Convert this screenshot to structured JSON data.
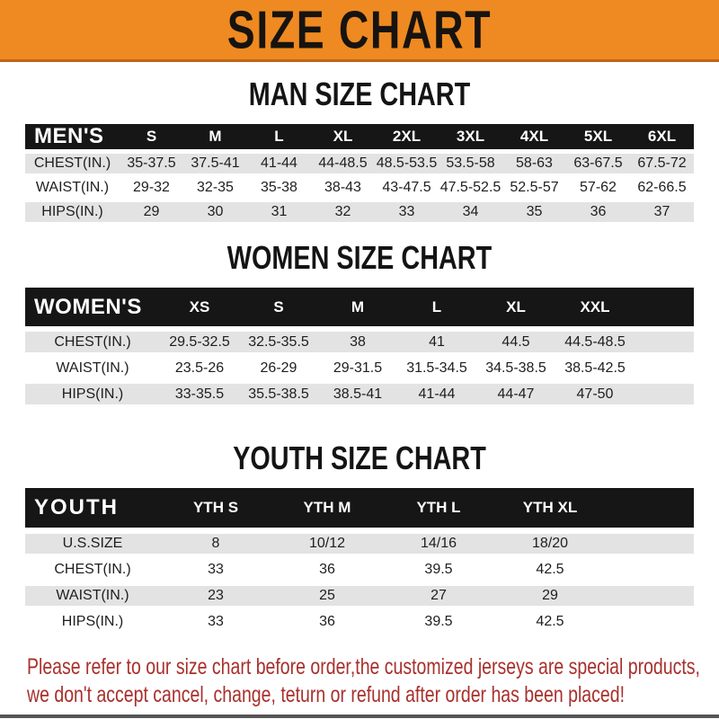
{
  "banner": {
    "title": "SIZE CHART"
  },
  "sections": [
    {
      "heading": "MAN SIZE CHART",
      "table": {
        "header_label": "MEN'S",
        "columns": [
          "S",
          "M",
          "L",
          "XL",
          "2XL",
          "3XL",
          "4XL",
          "5XL",
          "6XL"
        ],
        "rows": [
          {
            "label": "CHEST(IN.)",
            "values": [
              "35-37.5",
              "37.5-41",
              "41-44",
              "44-48.5",
              "48.5-53.5",
              "53.5-58",
              "58-63",
              "63-67.5",
              "67.5-72"
            ]
          },
          {
            "label": "WAIST(IN.)",
            "values": [
              "29-32",
              "32-35",
              "35-38",
              "38-43",
              "43-47.5",
              "47.5-52.5",
              "52.5-57",
              "57-62",
              "62-66.5"
            ]
          },
          {
            "label": "HIPS(IN.)",
            "values": [
              "29",
              "30",
              "31",
              "32",
              "33",
              "34",
              "35",
              "36",
              "37"
            ]
          }
        ]
      }
    },
    {
      "heading": "WOMEN SIZE CHART",
      "table": {
        "header_label": "WOMEN'S",
        "columns": [
          "XS",
          "S",
          "M",
          "L",
          "XL",
          "XXL"
        ],
        "rows": [
          {
            "label": "CHEST(IN.)",
            "values": [
              "29.5-32.5",
              "32.5-35.5",
              "38",
              "41",
              "44.5",
              "44.5-48.5"
            ]
          },
          {
            "label": "WAIST(IN.)",
            "values": [
              "23.5-26",
              "26-29",
              "29-31.5",
              "31.5-34.5",
              "34.5-38.5",
              "38.5-42.5"
            ]
          },
          {
            "label": "HIPS(IN.)",
            "values": [
              "33-35.5",
              "35.5-38.5",
              "38.5-41",
              "41-44",
              "44-47",
              "47-50"
            ]
          }
        ]
      }
    },
    {
      "heading": "YOUTH SIZE CHART",
      "table": {
        "header_label": "YOUTH",
        "columns": [
          "YTH S",
          "YTH M",
          "YTH L",
          "YTH XL"
        ],
        "rows": [
          {
            "label": "U.S.SIZE",
            "values": [
              "8",
              "10/12",
              "14/16",
              "18/20"
            ]
          },
          {
            "label": "CHEST(IN.)",
            "values": [
              "33",
              "36",
              "39.5",
              "42.5"
            ]
          },
          {
            "label": "WAIST(IN.)",
            "values": [
              "23",
              "25",
              "27",
              "29"
            ]
          },
          {
            "label": "HIPS(IN.)",
            "values": [
              "33",
              "36",
              "39.5",
              "42.5"
            ]
          }
        ]
      }
    }
  ],
  "footer": {
    "line1": "Please refer to our size chart before order,the customized jerseys are special products,",
    "line2": "we don't accept cancel, change, teturn or refund after order has been placed!"
  },
  "colors": {
    "banner_bg": "#EE8A21",
    "banner_edge": "#C06418",
    "header_bar": "#161616",
    "row_stripe": "#E3E3E3",
    "footer_text": "#A8302C",
    "bottom_bar": "#555555"
  }
}
